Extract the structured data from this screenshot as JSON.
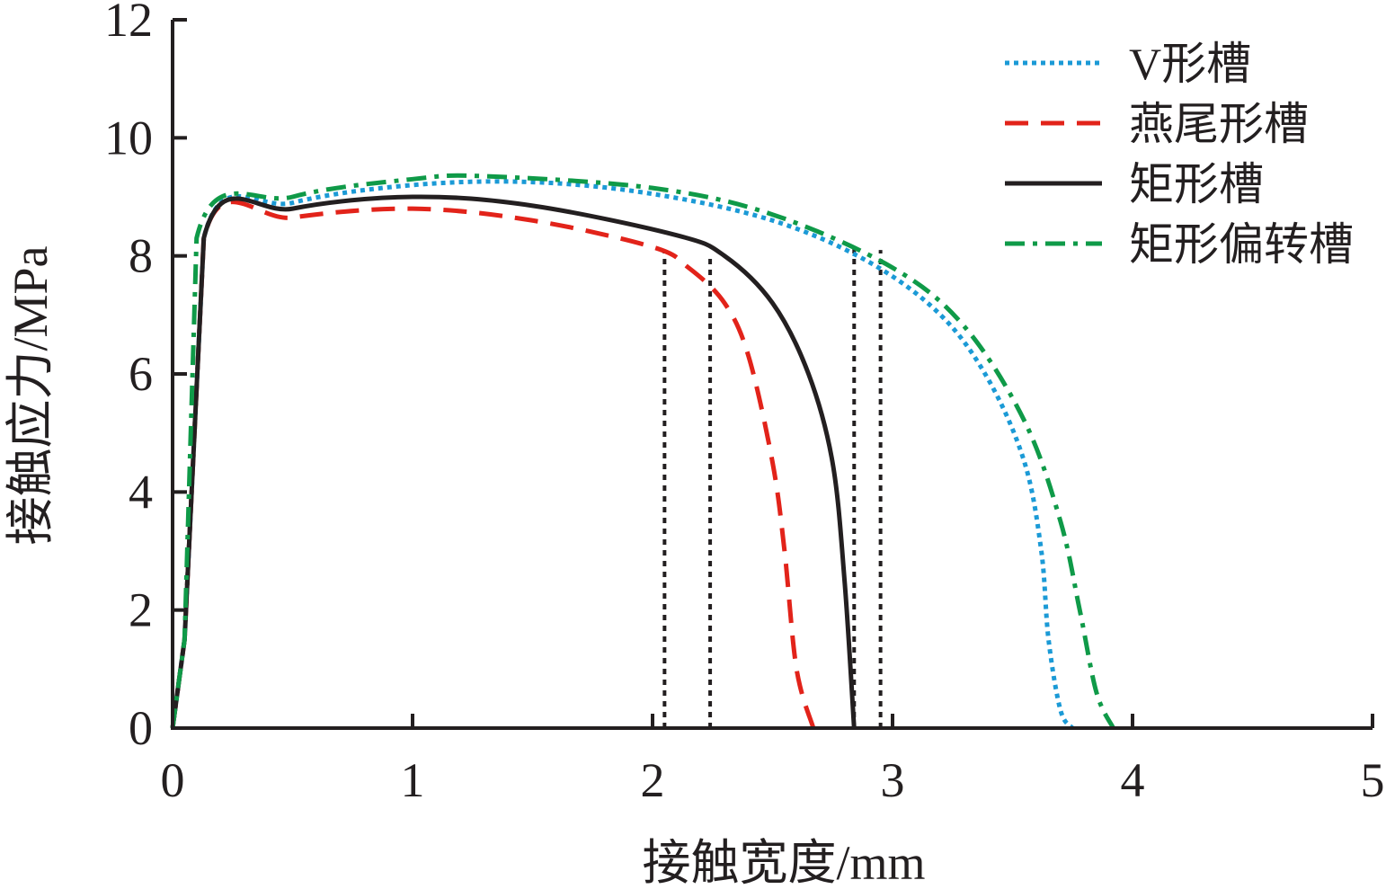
{
  "chart_data": {
    "type": "line",
    "title": "",
    "xlabel": "接触宽度/mm",
    "ylabel": "接触应力/MPa",
    "xlim": [
      0,
      5
    ],
    "ylim": [
      0,
      12
    ],
    "xticks": [
      "0",
      "1",
      "2",
      "3",
      "4",
      "5"
    ],
    "yticks": [
      "0",
      "2",
      "4",
      "6",
      "8",
      "10",
      "12"
    ],
    "grid": false,
    "legend_position": "top-right",
    "series": [
      {
        "name": "V形槽",
        "color": "#1b9ad6",
        "style": "dotted",
        "x": [
          0,
          0.05,
          0.13,
          0.5,
          1,
          1.5,
          2,
          2.5,
          2.9,
          3.2,
          3.4,
          3.55,
          3.62,
          3.65,
          3.7,
          3.75
        ],
        "y": [
          0,
          1.5,
          8.3,
          8.9,
          9.2,
          9.25,
          9.05,
          8.6,
          7.9,
          7.0,
          5.9,
          4.5,
          3.0,
          1.5,
          0.3,
          0
        ]
      },
      {
        "name": "燕尾形槽",
        "color": "#e2231a",
        "style": "dashed",
        "x": [
          0,
          0.05,
          0.13,
          0.5,
          1,
          1.5,
          2,
          2.15,
          2.3,
          2.4,
          2.5,
          2.55,
          2.6,
          2.67
        ],
        "y": [
          0,
          1.5,
          8.3,
          8.65,
          8.8,
          8.6,
          8.15,
          7.8,
          7.2,
          6.3,
          4.5,
          3.0,
          1.0,
          0
        ]
      },
      {
        "name": "矩形槽",
        "color": "#231f20",
        "style": "solid",
        "x": [
          0,
          0.05,
          0.13,
          0.5,
          1,
          1.5,
          2.1,
          2.3,
          2.5,
          2.65,
          2.75,
          2.8,
          2.84
        ],
        "y": [
          0,
          1.5,
          8.3,
          8.8,
          9.0,
          8.85,
          8.35,
          8.0,
          7.2,
          6.0,
          4.5,
          2.5,
          0
        ]
      },
      {
        "name": "矩形偏转槽",
        "color": "#0f9a48",
        "style": "dashdot",
        "x": [
          0,
          0.05,
          0.1,
          0.5,
          1,
          1.3,
          2,
          2.5,
          3,
          3.3,
          3.55,
          3.7,
          3.78,
          3.85,
          3.92
        ],
        "y": [
          0,
          1.5,
          8.3,
          9.0,
          9.3,
          9.35,
          9.15,
          8.7,
          7.8,
          6.8,
          5.2,
          3.5,
          2.0,
          0.6,
          0
        ]
      }
    ],
    "reference_lines": [
      {
        "x": 2.05,
        "y_top": 8.1
      },
      {
        "x": 2.24,
        "y_top": 8.0
      },
      {
        "x": 2.84,
        "y_top": 8.2
      },
      {
        "x": 2.95,
        "y_top": 8.1
      }
    ]
  }
}
